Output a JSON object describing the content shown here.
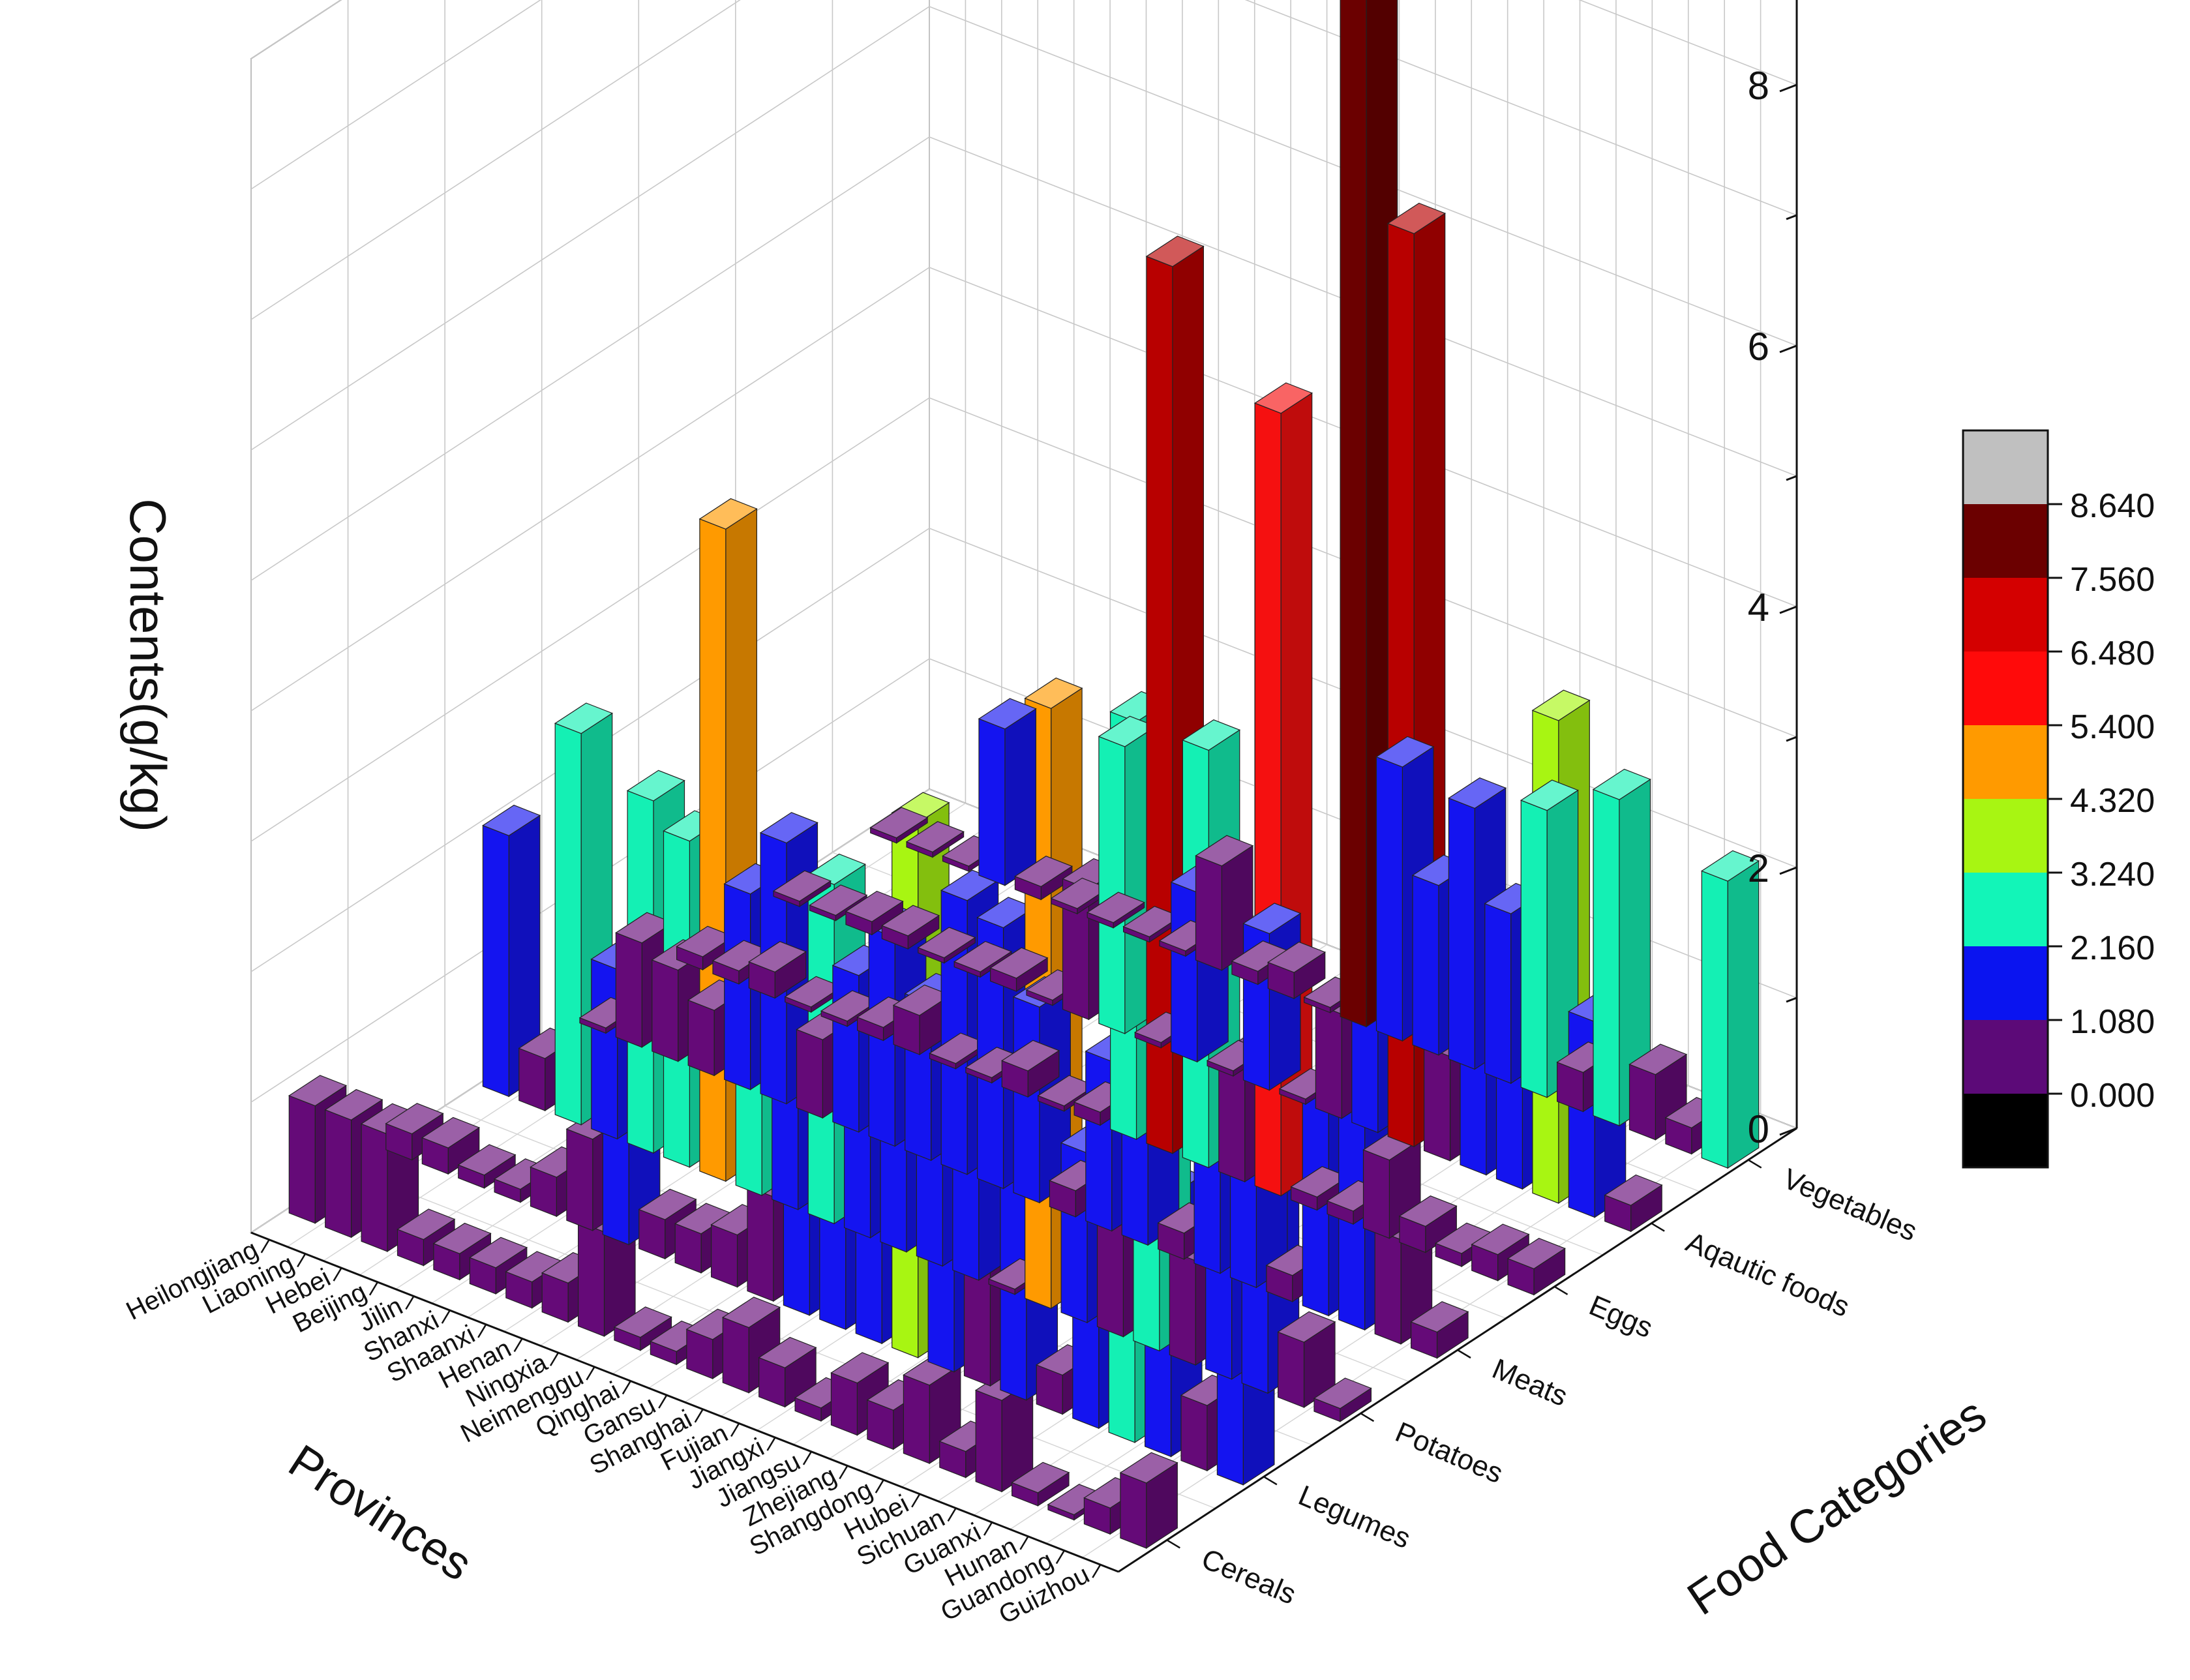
{
  "chart_data": {
    "type": "bar3d",
    "zlabel": "Contents(g/kg)",
    "xlabel": "Provinces",
    "ylabel": "Food Categories",
    "zlim": [
      0,
      9
    ],
    "z_ticks": [
      "0",
      "2",
      "4",
      "6",
      "8"
    ],
    "grid": true,
    "legend_placement": "right",
    "provinces": [
      "Heilongjiang",
      "Liaoning",
      "Hebei",
      "Beijing",
      "Jilin",
      "Shanxi",
      "Shaanxi",
      "Henan",
      "Ningxia",
      "Neimenggu",
      "Qinghai",
      "Gansu",
      "Shanghai",
      "Fujian",
      "Jiangxi",
      "Jiangsu",
      "Zhejiang",
      "Shangdong",
      "Hubei",
      "Sichuan",
      "Guanxi",
      "Hunan",
      "Guandong",
      "Guizhou"
    ],
    "categories": [
      "Cereals",
      "Legumes",
      "Potatoes",
      "Meats",
      "Eggs",
      "Aqautic foods",
      "Vegetables"
    ],
    "values": [
      [
        0.9,
        0.2,
        2.0,
        0.0,
        0.1,
        0.0,
        0.0
      ],
      [
        0.9,
        0.2,
        0.4,
        0.8,
        0.1,
        0.0,
        0.0
      ],
      [
        0.9,
        0.1,
        3.0,
        0.7,
        0.2,
        0.1,
        0.0
      ],
      [
        0.2,
        0.1,
        1.3,
        0.5,
        0.0,
        0.1,
        1.2
      ],
      [
        0.2,
        0.3,
        2.7,
        1.5,
        0.0,
        0.0,
        0.1
      ],
      [
        0.2,
        0.7,
        2.5,
        2.0,
        0.1,
        0.0,
        0.0
      ],
      [
        0.2,
        1.4,
        5.0,
        0.6,
        0.3,
        0.1,
        0.0
      ],
      [
        0.3,
        0.3,
        2.2,
        1.2,
        0.0,
        0.0,
        0.0
      ],
      [
        0.8,
        0.3,
        2.0,
        1.6,
        0.0,
        1.0,
        0.0
      ],
      [
        0.1,
        0.4,
        2.6,
        1.2,
        0.2,
        2.2,
        0.8
      ],
      [
        0.1,
        0.8,
        1.5,
        2.1,
        0.0,
        0.0,
        0.1
      ],
      [
        0.3,
        1.5,
        1.8,
        2.0,
        0.1,
        1.3,
        0.2
      ],
      [
        0.5,
        1.7,
        2.0,
        1.5,
        3.2,
        0.0,
        0.0
      ],
      [
        0.3,
        1.3,
        2.0,
        0.2,
        6.8,
        1.2,
        9.0
      ],
      [
        0.1,
        4.1,
        0.0,
        1.3,
        3.2,
        0.0,
        2.1
      ],
      [
        0.4,
        1.5,
        4.6,
        1.5,
        0.9,
        0.8,
        1.3
      ],
      [
        0.3,
        0.9,
        1.3,
        0.2,
        6.0,
        1.8,
        2.0
      ],
      [
        0.6,
        2.0,
        1.0,
        1.2,
        0.1,
        7.0,
        1.3
      ],
      [
        0.2,
        0.3,
        2.5,
        1.4,
        0.1,
        0.8,
        2.2
      ],
      [
        0.7,
        1.7,
        0.8,
        0.2,
        0.6,
        2.0,
        0.3
      ],
      [
        0.1,
        2.2,
        1.5,
        1.7,
        0.2,
        1.2,
        2.5
      ],
      [
        0.0,
        2.0,
        1.7,
        1.8,
        0.1,
        3.7,
        0.5
      ],
      [
        0.2,
        0.5,
        0.5,
        0.8,
        0.2,
        1.5,
        0.2
      ],
      [
        0.5,
        1.7,
        0.1,
        0.2,
        0.2,
        0.2,
        2.2
      ]
    ],
    "colormap": {
      "levels": [
        "0.000",
        "1.080",
        "2.160",
        "3.240",
        "4.320",
        "5.400",
        "6.480",
        "7.560",
        "8.640"
      ],
      "colors": [
        "#000000",
        "#5c0a78",
        "#0a14f0",
        "#12f5b8",
        "#a8f512",
        "#ff9a00",
        "#ff0a0a",
        "#d40000",
        "#6b0000",
        "#c0c0c0"
      ],
      "bar_colors": [
        "#650a78",
        "#1414f0",
        "#14f0b4",
        "#a8f512",
        "#ff9a00",
        "#f51010",
        "#b80000",
        "#6b0000"
      ]
    }
  }
}
